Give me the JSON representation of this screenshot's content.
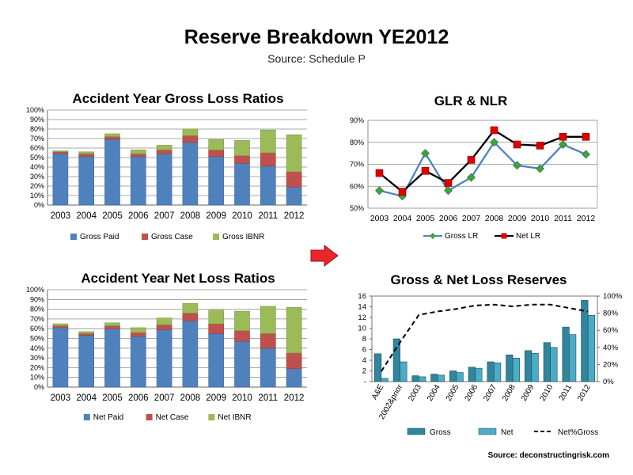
{
  "page": {
    "title": "Reserve Breakdown YE2012",
    "subtitle": "Source: Schedule P",
    "footer": "Source: deconstructingrisk.com",
    "arrow_color": "#e8262b"
  },
  "colors": {
    "paid": "#4f81bd",
    "case": "#c0504d",
    "ibnr": "#9bbb59",
    "gross_lr_line": "#4f81bd",
    "gross_lr_marker": "#3ea33e",
    "net_lr_line": "#000000",
    "net_lr_marker": "#e00000",
    "gross_bar": "#31859c",
    "net_bar": "#4bacc6"
  },
  "chart_data": [
    {
      "id": "gross_lr",
      "type": "bar",
      "stacked": true,
      "title": "Accident Year Gross Loss Ratios",
      "categories": [
        "2003",
        "2004",
        "2005",
        "2006",
        "2007",
        "2008",
        "2009",
        "2010",
        "2011",
        "2012"
      ],
      "ylim": [
        0,
        1
      ],
      "yticks": [
        "0%",
        "10%",
        "20%",
        "30%",
        "40%",
        "50%",
        "60%",
        "70%",
        "80%",
        "90%",
        "100%"
      ],
      "grid": true,
      "legend": "bottom",
      "series": [
        {
          "name": "Gross Paid",
          "values": [
            0.54,
            0.51,
            0.69,
            0.51,
            0.54,
            0.66,
            0.51,
            0.44,
            0.41,
            0.19
          ]
        },
        {
          "name": "Gross Case",
          "values": [
            0.02,
            0.03,
            0.03,
            0.03,
            0.04,
            0.07,
            0.07,
            0.08,
            0.14,
            0.16
          ]
        },
        {
          "name": "Gross IBNR",
          "values": [
            0.01,
            0.02,
            0.03,
            0.04,
            0.05,
            0.07,
            0.11,
            0.16,
            0.24,
            0.39
          ]
        }
      ]
    },
    {
      "id": "glr_nlr",
      "type": "line",
      "title": "GLR & NLR",
      "categories": [
        "2003",
        "2004",
        "2005",
        "2006",
        "2007",
        "2008",
        "2009",
        "2010",
        "2011",
        "2012"
      ],
      "ylim": [
        0.5,
        0.9
      ],
      "yticks": [
        "50%",
        "60%",
        "70%",
        "80%",
        "90%"
      ],
      "grid": true,
      "legend": "bottom",
      "series": [
        {
          "name": "Gross LR",
          "values": [
            0.58,
            0.555,
            0.75,
            0.58,
            0.64,
            0.8,
            0.695,
            0.68,
            0.79,
            0.745
          ]
        },
        {
          "name": "Net LR",
          "values": [
            0.66,
            0.575,
            0.67,
            0.615,
            0.72,
            0.855,
            0.79,
            0.785,
            0.825,
            0.825
          ]
        }
      ]
    },
    {
      "id": "net_lr",
      "type": "bar",
      "stacked": true,
      "title": "Accident Year Net Loss Ratios",
      "categories": [
        "2003",
        "2004",
        "2005",
        "2006",
        "2007",
        "2008",
        "2009",
        "2010",
        "2011",
        "2012"
      ],
      "ylim": [
        0,
        1
      ],
      "yticks": [
        "0%",
        "10%",
        "20%",
        "30%",
        "40%",
        "50%",
        "60%",
        "70%",
        "80%",
        "90%",
        "100%"
      ],
      "grid": true,
      "legend": "bottom",
      "series": [
        {
          "name": "Net Paid",
          "values": [
            0.61,
            0.53,
            0.6,
            0.52,
            0.59,
            0.68,
            0.55,
            0.47,
            0.4,
            0.19
          ]
        },
        {
          "name": "Net Case",
          "values": [
            0.02,
            0.02,
            0.03,
            0.04,
            0.05,
            0.08,
            0.1,
            0.11,
            0.15,
            0.16
          ]
        },
        {
          "name": "Net IBNR",
          "values": [
            0.02,
            0.02,
            0.03,
            0.05,
            0.07,
            0.1,
            0.14,
            0.2,
            0.28,
            0.47
          ]
        }
      ]
    },
    {
      "id": "reserves",
      "type": "bar",
      "title": "Gross & Net Loss Reserves",
      "categories": [
        "A&E",
        "2002&prior",
        "2003",
        "2004",
        "2005",
        "2006",
        "2007",
        "2008",
        "2009",
        "2010",
        "2011",
        "2012"
      ],
      "ylim": [
        0,
        16
      ],
      "yticks": [
        "-",
        "2",
        "4",
        "6",
        "8",
        "10",
        "12",
        "14",
        "16"
      ],
      "y2lim": [
        0,
        1
      ],
      "y2ticks": [
        "0%",
        "20%",
        "40%",
        "60%",
        "80%",
        "100%"
      ],
      "legend": "bottom",
      "series": [
        {
          "name": "Gross",
          "values": [
            5.2,
            8.0,
            1.1,
            1.4,
            2.0,
            2.7,
            3.7,
            5.0,
            5.8,
            7.3,
            10.2,
            15.2
          ]
        },
        {
          "name": "Net",
          "values": [
            0.6,
            3.7,
            0.9,
            1.2,
            1.7,
            2.5,
            3.5,
            4.4,
            5.3,
            6.4,
            8.8,
            12.4
          ]
        },
        {
          "name": "Net%Gross",
          "axis": "secondary",
          "values": [
            0.12,
            0.46,
            0.78,
            0.82,
            0.85,
            0.89,
            0.9,
            0.88,
            0.9,
            0.9,
            0.86,
            0.82
          ]
        }
      ]
    }
  ]
}
